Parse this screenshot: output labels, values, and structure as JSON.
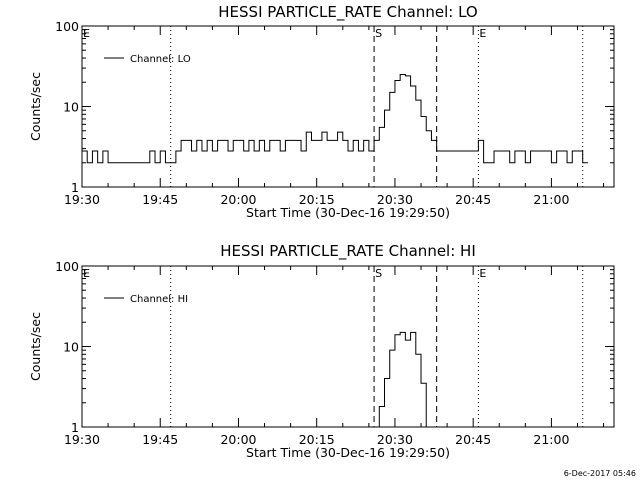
{
  "footer": {
    "timestamp": "6-Dec-2017 05:46"
  },
  "chart_data": [
    {
      "type": "line",
      "title": "HESSI PARTICLE_RATE Channel: LO",
      "xlabel": "Start Time (30-Dec-16 19:29:50)",
      "ylabel": "Counts/sec",
      "yscale": "log",
      "xlim": [
        "19:30",
        "21:12"
      ],
      "ylim": [
        1,
        100
      ],
      "xticks": [
        "19:30",
        "19:45",
        "20:00",
        "20:15",
        "20:30",
        "20:45",
        "21:00"
      ],
      "yticks": [
        "1",
        "10",
        "100"
      ],
      "legend": {
        "position": "top-left",
        "entries": [
          "Channel: LO"
        ]
      },
      "markers": [
        {
          "label": "E",
          "time": "19:30",
          "style": "dotted"
        },
        {
          "label": "",
          "time": "19:47",
          "style": "dotted"
        },
        {
          "label": "S",
          "time": "20:26",
          "style": "dashed"
        },
        {
          "label": "",
          "time": "20:38",
          "style": "dashed"
        },
        {
          "label": "E",
          "time": "20:46",
          "style": "dotted"
        },
        {
          "label": "",
          "time": "21:06",
          "style": "dotted"
        }
      ],
      "series": [
        {
          "name": "Channel: LO",
          "x": [
            "19:30",
            "19:31",
            "19:32",
            "19:33",
            "19:34",
            "19:35",
            "19:36",
            "19:37",
            "19:38",
            "19:39",
            "19:40",
            "19:41",
            "19:42",
            "19:43",
            "19:44",
            "19:45",
            "19:46",
            "19:47",
            "19:48",
            "19:49",
            "19:50",
            "19:51",
            "19:52",
            "19:53",
            "19:54",
            "19:55",
            "19:56",
            "19:57",
            "19:58",
            "19:59",
            "20:00",
            "20:01",
            "20:02",
            "20:03",
            "20:04",
            "20:05",
            "20:06",
            "20:07",
            "20:08",
            "20:09",
            "20:10",
            "20:11",
            "20:12",
            "20:13",
            "20:14",
            "20:15",
            "20:16",
            "20:17",
            "20:18",
            "20:19",
            "20:20",
            "20:21",
            "20:22",
            "20:23",
            "20:24",
            "20:25",
            "20:26",
            "20:27",
            "20:28",
            "20:29",
            "20:30",
            "20:31",
            "20:32",
            "20:33",
            "20:34",
            "20:35",
            "20:36",
            "20:37",
            "20:38",
            "20:39",
            "20:40",
            "20:41",
            "20:42",
            "20:43",
            "20:44",
            "20:45",
            "20:46",
            "20:47",
            "20:48",
            "20:49",
            "20:50",
            "20:51",
            "20:52",
            "20:53",
            "20:54",
            "20:55",
            "20:56",
            "20:57",
            "20:58",
            "20:59",
            "21:00",
            "21:01",
            "21:02",
            "21:03",
            "21:04",
            "21:05",
            "21:06"
          ],
          "values": [
            2.8,
            2.0,
            2.8,
            2.0,
            2.8,
            2.0,
            2.0,
            2.0,
            2.0,
            2.0,
            2.0,
            2.0,
            2.0,
            2.8,
            2.0,
            2.8,
            2.0,
            2.0,
            2.8,
            3.8,
            3.8,
            2.8,
            3.8,
            2.8,
            3.8,
            2.8,
            3.8,
            3.8,
            2.8,
            3.8,
            3.8,
            2.8,
            3.8,
            2.8,
            3.8,
            2.8,
            3.8,
            3.8,
            2.8,
            3.8,
            3.8,
            3.8,
            2.8,
            4.8,
            3.8,
            3.8,
            4.8,
            3.8,
            3.8,
            4.8,
            3.8,
            2.8,
            3.8,
            2.8,
            3.8,
            2.8,
            3.8,
            5.5,
            9.0,
            15.0,
            21.0,
            25.0,
            24.0,
            18.0,
            12.0,
            7.5,
            5.0,
            3.8,
            2.8,
            2.8,
            2.8,
            2.8,
            2.8,
            2.8,
            2.8,
            2.8,
            3.8,
            2.0,
            2.0,
            2.8,
            2.8,
            2.8,
            2.0,
            2.8,
            2.8,
            2.0,
            2.8,
            2.8,
            2.8,
            2.8,
            2.0,
            2.8,
            2.8,
            2.0,
            2.8,
            2.8,
            2.0
          ]
        }
      ]
    },
    {
      "type": "line",
      "title": "HESSI PARTICLE_RATE Channel: HI",
      "xlabel": "Start Time (30-Dec-16 19:29:50)",
      "ylabel": "Counts/sec",
      "yscale": "log",
      "xlim": [
        "19:30",
        "21:12"
      ],
      "ylim": [
        1,
        100
      ],
      "xticks": [
        "19:30",
        "19:45",
        "20:00",
        "20:15",
        "20:30",
        "20:45",
        "21:00"
      ],
      "yticks": [
        "1",
        "10",
        "100"
      ],
      "legend": {
        "position": "top-left",
        "entries": [
          "Channel: HI"
        ]
      },
      "markers": [
        {
          "label": "E",
          "time": "19:30",
          "style": "dotted"
        },
        {
          "label": "",
          "time": "19:47",
          "style": "dotted"
        },
        {
          "label": "S",
          "time": "20:26",
          "style": "dashed"
        },
        {
          "label": "",
          "time": "20:38",
          "style": "dashed"
        },
        {
          "label": "E",
          "time": "20:46",
          "style": "dotted"
        },
        {
          "label": "",
          "time": "21:06",
          "style": "dotted"
        }
      ],
      "series": [
        {
          "name": "Channel: HI",
          "x": [
            "20:26",
            "20:27",
            "20:28",
            "20:29",
            "20:30",
            "20:31",
            "20:32",
            "20:33",
            "20:34",
            "20:35",
            "20:36"
          ],
          "values": [
            0.9,
            1.8,
            4.0,
            9.0,
            14.0,
            15.0,
            12.0,
            15.0,
            8.0,
            3.5,
            0.9
          ]
        }
      ]
    }
  ]
}
